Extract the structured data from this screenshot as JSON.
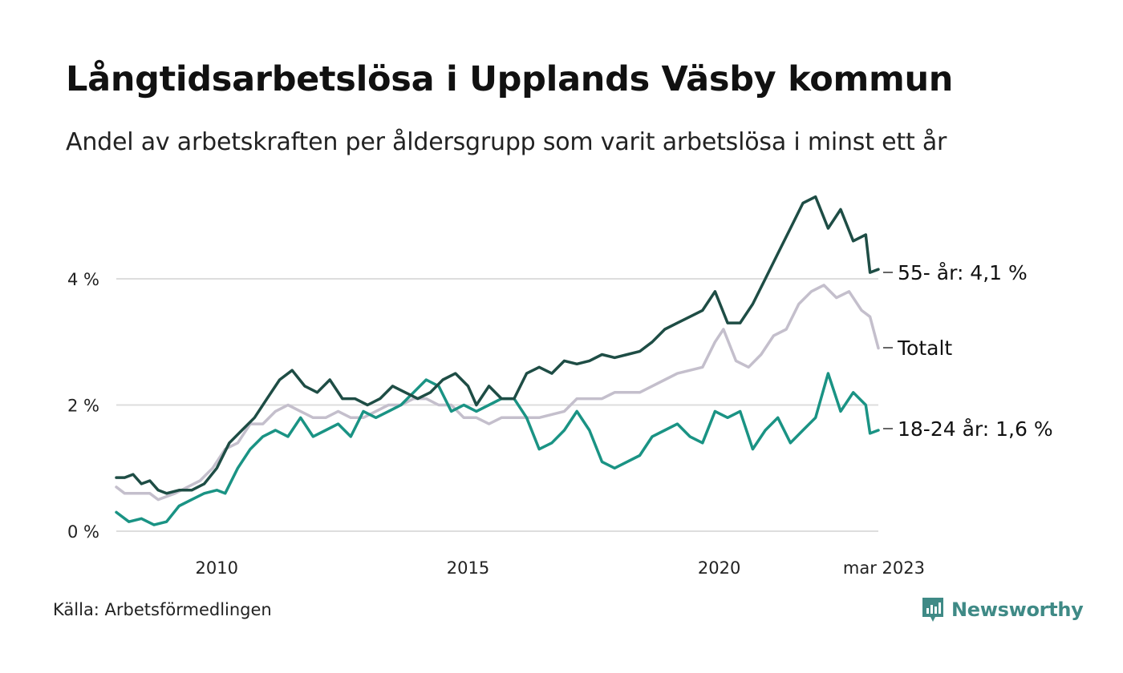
{
  "title": "Långtidsarbetslösa i Upplands Väsby kommun",
  "subtitle": "Andel av arbetskraften per åldersgrupp som varit arbetslösa i minst ett år",
  "source": "Källa: Arbetsförmedlingen",
  "brand": "Newsworthy",
  "colors": {
    "series_55": "#1e4d45",
    "series_totalt": "#c4bfcc",
    "series_18_24": "#1a9384",
    "grid": "#dddddd",
    "brand": "#3f8a86"
  },
  "chart_data": {
    "type": "line",
    "y_unit": "%",
    "ylim": [
      0,
      5.5
    ],
    "xlim": [
      "2008-01",
      "2023-03"
    ],
    "yticks": [
      {
        "value": 0,
        "label": "0 %"
      },
      {
        "value": 2,
        "label": "2 %"
      },
      {
        "value": 4,
        "label": "4 %"
      }
    ],
    "xticks": [
      {
        "date": "2010-01",
        "label": "2010"
      },
      {
        "date": "2015-01",
        "label": "2015"
      },
      {
        "date": "2020-01",
        "label": "2020"
      },
      {
        "date": "2023-03",
        "label": "mar 2023"
      }
    ],
    "grid": "horizontal",
    "series": [
      {
        "key": "series_totalt",
        "name": "Totalt",
        "end_label": "Totalt",
        "points": [
          [
            "2008-01",
            0.7
          ],
          [
            "2008-03",
            0.6
          ],
          [
            "2008-06",
            0.6
          ],
          [
            "2008-09",
            0.6
          ],
          [
            "2008-11",
            0.5
          ],
          [
            "2009-03",
            0.6
          ],
          [
            "2009-06",
            0.7
          ],
          [
            "2009-09",
            0.8
          ],
          [
            "2009-12",
            1.0
          ],
          [
            "2010-03",
            1.3
          ],
          [
            "2010-06",
            1.4
          ],
          [
            "2010-09",
            1.7
          ],
          [
            "2010-12",
            1.7
          ],
          [
            "2011-03",
            1.9
          ],
          [
            "2011-06",
            2.0
          ],
          [
            "2011-09",
            1.9
          ],
          [
            "2011-12",
            1.8
          ],
          [
            "2012-03",
            1.8
          ],
          [
            "2012-06",
            1.9
          ],
          [
            "2012-09",
            1.8
          ],
          [
            "2012-12",
            1.8
          ],
          [
            "2013-03",
            1.9
          ],
          [
            "2013-06",
            2.0
          ],
          [
            "2013-09",
            2.0
          ],
          [
            "2013-12",
            2.1
          ],
          [
            "2014-03",
            2.1
          ],
          [
            "2014-06",
            2.0
          ],
          [
            "2014-09",
            2.0
          ],
          [
            "2014-12",
            1.8
          ],
          [
            "2015-03",
            1.8
          ],
          [
            "2015-06",
            1.7
          ],
          [
            "2015-09",
            1.8
          ],
          [
            "2015-12",
            1.8
          ],
          [
            "2016-06",
            1.8
          ],
          [
            "2016-12",
            1.9
          ],
          [
            "2017-03",
            2.1
          ],
          [
            "2017-09",
            2.1
          ],
          [
            "2017-12",
            2.2
          ],
          [
            "2018-06",
            2.2
          ],
          [
            "2018-09",
            2.3
          ],
          [
            "2018-12",
            2.4
          ],
          [
            "2019-03",
            2.5
          ],
          [
            "2019-09",
            2.6
          ],
          [
            "2019-12",
            3.0
          ],
          [
            "2020-02",
            3.2
          ],
          [
            "2020-05",
            2.7
          ],
          [
            "2020-08",
            2.6
          ],
          [
            "2020-11",
            2.8
          ],
          [
            "2021-02",
            3.1
          ],
          [
            "2021-05",
            3.2
          ],
          [
            "2021-08",
            3.6
          ],
          [
            "2021-11",
            3.8
          ],
          [
            "2022-02",
            3.9
          ],
          [
            "2022-05",
            3.7
          ],
          [
            "2022-08",
            3.8
          ],
          [
            "2022-11",
            3.5
          ],
          [
            "2023-01",
            3.4
          ],
          [
            "2023-03",
            2.9
          ]
        ]
      },
      {
        "key": "series_18_24",
        "name": "18-24 år",
        "end_label": "18-24 år: 1,6 %",
        "points": [
          [
            "2008-01",
            0.3
          ],
          [
            "2008-04",
            0.15
          ],
          [
            "2008-07",
            0.2
          ],
          [
            "2008-10",
            0.1
          ],
          [
            "2009-01",
            0.15
          ],
          [
            "2009-04",
            0.4
          ],
          [
            "2009-07",
            0.5
          ],
          [
            "2009-10",
            0.6
          ],
          [
            "2010-01",
            0.65
          ],
          [
            "2010-03",
            0.6
          ],
          [
            "2010-06",
            1.0
          ],
          [
            "2010-09",
            1.3
          ],
          [
            "2010-12",
            1.5
          ],
          [
            "2011-03",
            1.6
          ],
          [
            "2011-06",
            1.5
          ],
          [
            "2011-09",
            1.8
          ],
          [
            "2011-12",
            1.5
          ],
          [
            "2012-03",
            1.6
          ],
          [
            "2012-06",
            1.7
          ],
          [
            "2012-09",
            1.5
          ],
          [
            "2012-12",
            1.9
          ],
          [
            "2013-03",
            1.8
          ],
          [
            "2013-06",
            1.9
          ],
          [
            "2013-09",
            2.0
          ],
          [
            "2013-12",
            2.2
          ],
          [
            "2014-03",
            2.4
          ],
          [
            "2014-06",
            2.3
          ],
          [
            "2014-09",
            1.9
          ],
          [
            "2014-12",
            2.0
          ],
          [
            "2015-03",
            1.9
          ],
          [
            "2015-06",
            2.0
          ],
          [
            "2015-09",
            2.1
          ],
          [
            "2015-12",
            2.1
          ],
          [
            "2016-03",
            1.8
          ],
          [
            "2016-06",
            1.3
          ],
          [
            "2016-09",
            1.4
          ],
          [
            "2016-12",
            1.6
          ],
          [
            "2017-03",
            1.9
          ],
          [
            "2017-06",
            1.6
          ],
          [
            "2017-09",
            1.1
          ],
          [
            "2017-12",
            1.0
          ],
          [
            "2018-03",
            1.1
          ],
          [
            "2018-06",
            1.2
          ],
          [
            "2018-09",
            1.5
          ],
          [
            "2018-12",
            1.6
          ],
          [
            "2019-03",
            1.7
          ],
          [
            "2019-06",
            1.5
          ],
          [
            "2019-09",
            1.4
          ],
          [
            "2019-12",
            1.9
          ],
          [
            "2020-03",
            1.8
          ],
          [
            "2020-06",
            1.9
          ],
          [
            "2020-09",
            1.3
          ],
          [
            "2020-12",
            1.6
          ],
          [
            "2021-03",
            1.8
          ],
          [
            "2021-06",
            1.4
          ],
          [
            "2021-09",
            1.6
          ],
          [
            "2021-12",
            1.8
          ],
          [
            "2022-03",
            2.5
          ],
          [
            "2022-06",
            1.9
          ],
          [
            "2022-09",
            2.2
          ],
          [
            "2022-12",
            2.0
          ],
          [
            "2023-01",
            1.55
          ],
          [
            "2023-03",
            1.6
          ]
        ]
      },
      {
        "key": "series_55",
        "name": "55- år",
        "end_label": "55- år: 4,1 %",
        "points": [
          [
            "2008-01",
            0.85
          ],
          [
            "2008-03",
            0.85
          ],
          [
            "2008-05",
            0.9
          ],
          [
            "2008-07",
            0.75
          ],
          [
            "2008-09",
            0.8
          ],
          [
            "2008-11",
            0.65
          ],
          [
            "2009-01",
            0.6
          ],
          [
            "2009-04",
            0.65
          ],
          [
            "2009-07",
            0.65
          ],
          [
            "2009-10",
            0.75
          ],
          [
            "2010-01",
            1.0
          ],
          [
            "2010-04",
            1.4
          ],
          [
            "2010-07",
            1.6
          ],
          [
            "2010-10",
            1.8
          ],
          [
            "2011-01",
            2.1
          ],
          [
            "2011-04",
            2.4
          ],
          [
            "2011-07",
            2.55
          ],
          [
            "2011-10",
            2.3
          ],
          [
            "2012-01",
            2.2
          ],
          [
            "2012-04",
            2.4
          ],
          [
            "2012-07",
            2.1
          ],
          [
            "2012-10",
            2.1
          ],
          [
            "2013-01",
            2.0
          ],
          [
            "2013-04",
            2.1
          ],
          [
            "2013-07",
            2.3
          ],
          [
            "2013-10",
            2.2
          ],
          [
            "2014-01",
            2.1
          ],
          [
            "2014-04",
            2.2
          ],
          [
            "2014-07",
            2.4
          ],
          [
            "2014-10",
            2.5
          ],
          [
            "2015-01",
            2.3
          ],
          [
            "2015-03",
            2.0
          ],
          [
            "2015-06",
            2.3
          ],
          [
            "2015-09",
            2.1
          ],
          [
            "2015-12",
            2.1
          ],
          [
            "2016-03",
            2.5
          ],
          [
            "2016-06",
            2.6
          ],
          [
            "2016-09",
            2.5
          ],
          [
            "2016-12",
            2.7
          ],
          [
            "2017-03",
            2.65
          ],
          [
            "2017-06",
            2.7
          ],
          [
            "2017-09",
            2.8
          ],
          [
            "2017-12",
            2.75
          ],
          [
            "2018-03",
            2.8
          ],
          [
            "2018-06",
            2.85
          ],
          [
            "2018-09",
            3.0
          ],
          [
            "2018-12",
            3.2
          ],
          [
            "2019-03",
            3.3
          ],
          [
            "2019-06",
            3.4
          ],
          [
            "2019-09",
            3.5
          ],
          [
            "2019-12",
            3.8
          ],
          [
            "2020-03",
            3.3
          ],
          [
            "2020-06",
            3.3
          ],
          [
            "2020-09",
            3.6
          ],
          [
            "2020-12",
            4.0
          ],
          [
            "2021-03",
            4.4
          ],
          [
            "2021-06",
            4.8
          ],
          [
            "2021-09",
            5.2
          ],
          [
            "2021-12",
            5.3
          ],
          [
            "2022-03",
            4.8
          ],
          [
            "2022-06",
            5.1
          ],
          [
            "2022-09",
            4.6
          ],
          [
            "2022-12",
            4.7
          ],
          [
            "2023-01",
            4.1
          ],
          [
            "2023-03",
            4.15
          ]
        ]
      }
    ]
  }
}
